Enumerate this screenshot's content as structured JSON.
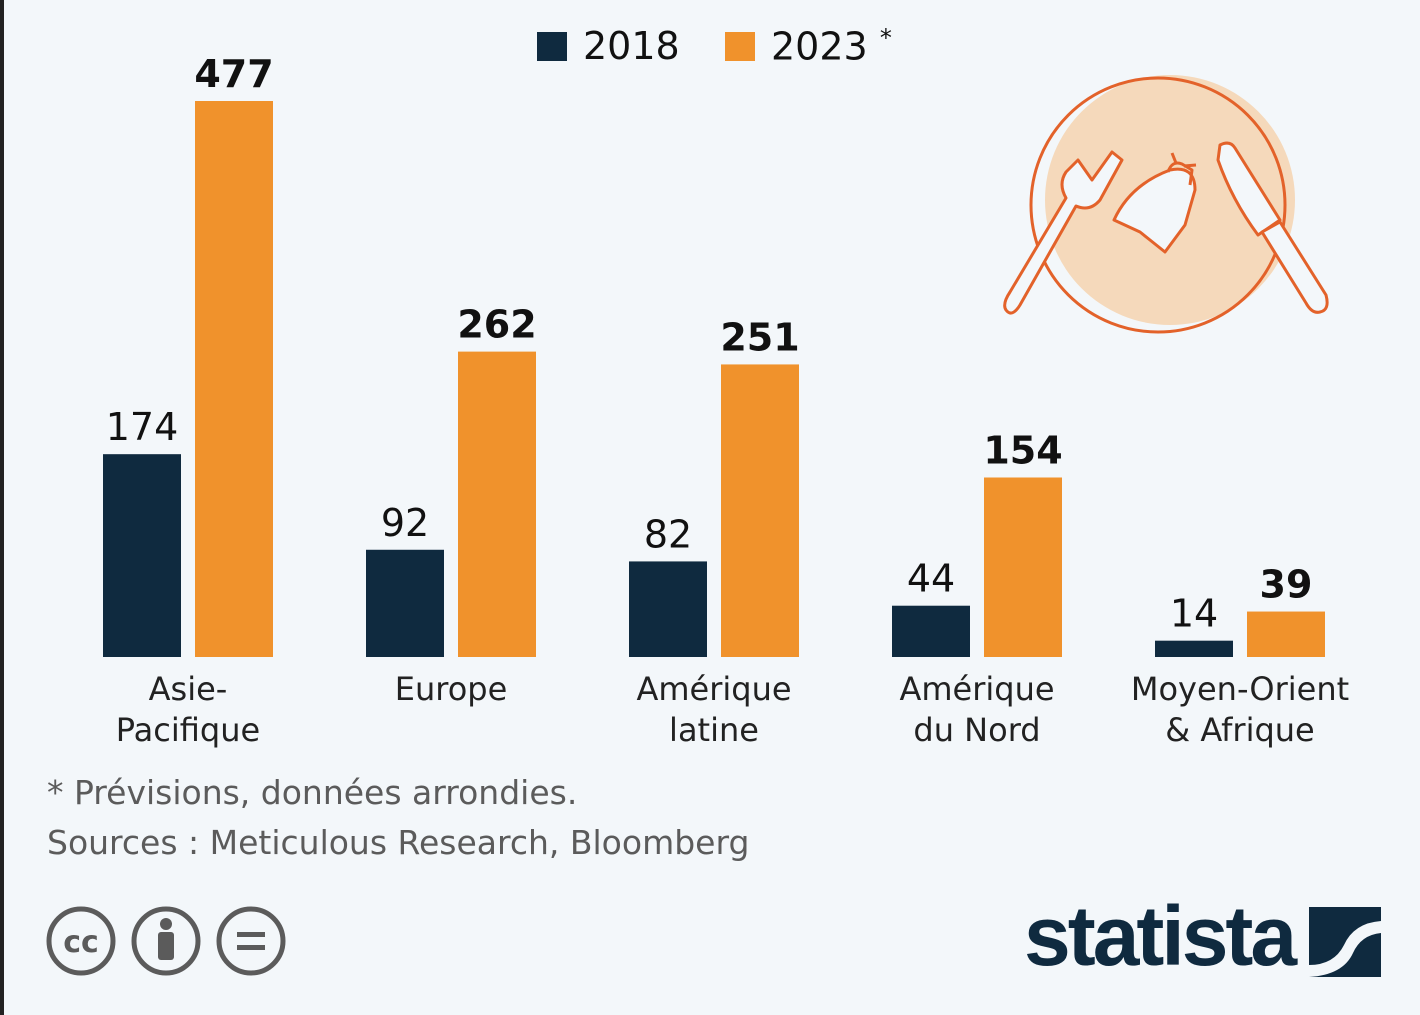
{
  "chart_data": {
    "type": "bar",
    "categories": [
      "Asie-\nPacifique",
      "Europe",
      "Amérique\nlatine",
      "Amérique\ndu Nord",
      "Moyen-Orient\n& Afrique"
    ],
    "series": [
      {
        "name": "2018",
        "color": "#0f2a3f",
        "values": [
          174,
          92,
          82,
          44,
          14
        ]
      },
      {
        "name": "2023",
        "suffix": "*",
        "color": "#f0922c",
        "values": [
          477,
          262,
          251,
          154,
          39
        ]
      }
    ],
    "ylim": [
      0,
      477
    ],
    "grid": false,
    "legend": "top-center",
    "title": "",
    "xlabel": "",
    "ylabel": ""
  },
  "footnote": "* Prévisions, données arrondies.",
  "sources": "Sources : Meticulous Research, Bloomberg",
  "brand": "statista",
  "license_icons": [
    "cc-icon",
    "by-icon",
    "nd-icon"
  ]
}
